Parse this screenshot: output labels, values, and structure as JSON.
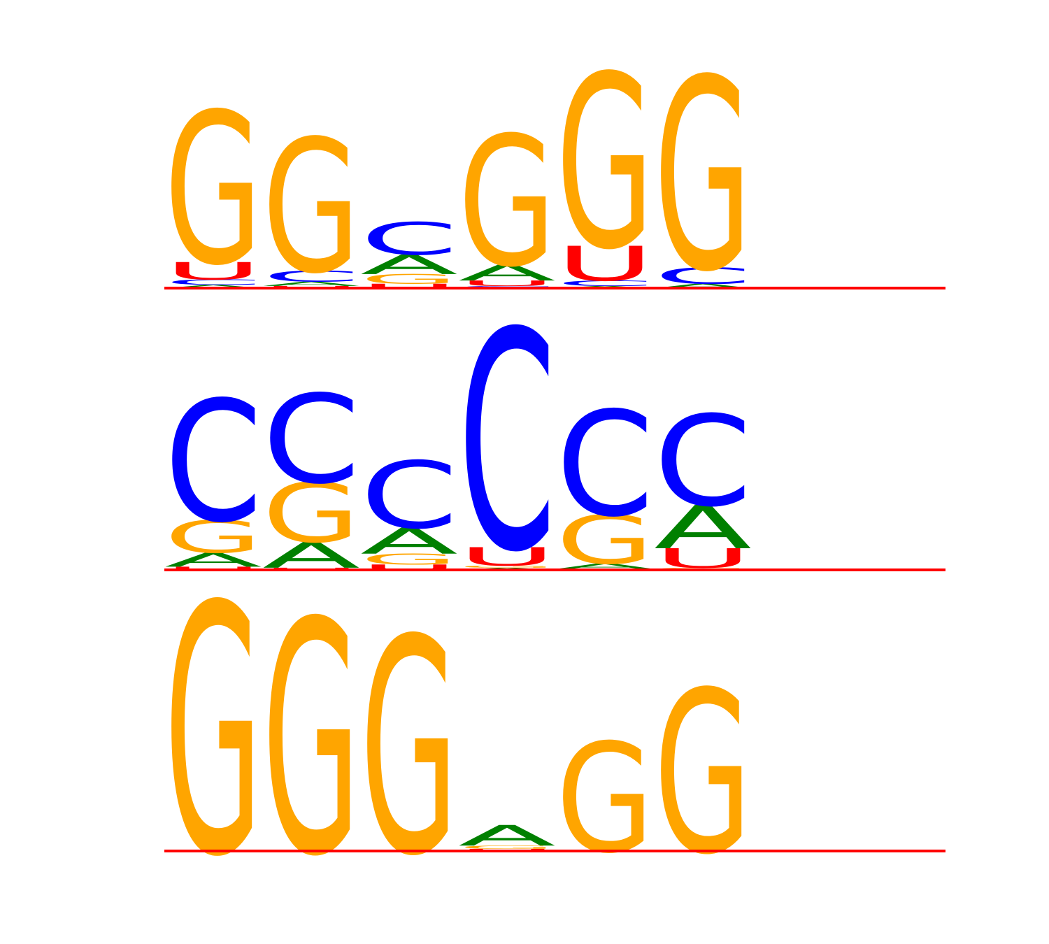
{
  "chart_data": [
    {
      "type": "sequence-logo",
      "alphabet": [
        "A",
        "C",
        "G",
        "U"
      ],
      "colors": {
        "A": "#008000",
        "C": "#0000ff",
        "G": "#ffa500",
        "U": "#ff0000"
      },
      "baseline_color": "#ff0000",
      "ylim": [
        0,
        2
      ],
      "positions": [
        {
          "A": 0.03,
          "C": 0.05,
          "G": 1.4,
          "U": 0.16
        },
        {
          "A": 0.04,
          "C": 0.1,
          "G": 1.23,
          "U": 0.02
        },
        {
          "A": 0.18,
          "C": 0.3,
          "G": 0.09,
          "U": 0.04
        },
        {
          "A": 0.15,
          "C": 0.02,
          "G": 1.2,
          "U": 0.05
        },
        {
          "A": 0.02,
          "C": 0.05,
          "G": 1.6,
          "U": 0.32
        },
        {
          "A": 0.04,
          "C": 0.15,
          "G": 1.77,
          "U": 0.0
        }
      ]
    },
    {
      "type": "sequence-logo",
      "alphabet": [
        "A",
        "C",
        "G",
        "U"
      ],
      "colors": {
        "A": "#008000",
        "C": "#0000ff",
        "G": "#ffa500",
        "U": "#ff0000"
      },
      "baseline_color": "#ff0000",
      "ylim": [
        0,
        2
      ],
      "positions": [
        {
          "A": 0.13,
          "C": 1.12,
          "G": 0.3,
          "U": 0.03
        },
        {
          "A": 0.24,
          "C": 0.82,
          "G": 0.55,
          "U": 0.02
        },
        {
          "A": 0.24,
          "C": 0.62,
          "G": 0.1,
          "U": 0.05
        },
        {
          "A": 0.02,
          "C": 2.02,
          "G": 0.02,
          "U": 0.17
        },
        {
          "A": 0.05,
          "C": 0.97,
          "G": 0.45,
          "U": 0.01
        },
        {
          "A": 0.4,
          "C": 0.84,
          "G": 0.02,
          "U": 0.18
        }
      ]
    },
    {
      "type": "sequence-logo",
      "alphabet": [
        "A",
        "C",
        "G",
        "U"
      ],
      "colors": {
        "A": "#008000",
        "C": "#0000ff",
        "G": "#ffa500",
        "U": "#ff0000"
      },
      "baseline_color": "#ff0000",
      "ylim": [
        0,
        2
      ],
      "positions": [
        {
          "A": 0.0,
          "C": 0.0,
          "G": 2.3,
          "U": 0.0
        },
        {
          "A": 0.0,
          "C": 0.0,
          "G": 2.15,
          "U": 0.0
        },
        {
          "A": 0.0,
          "C": 0.0,
          "G": 1.99,
          "U": 0.0
        },
        {
          "A": 0.19,
          "C": 0.0,
          "G": 0.03,
          "U": 0.02
        },
        {
          "A": 0.0,
          "C": 0.0,
          "G": 1.01,
          "U": 0.0
        },
        {
          "A": 0.0,
          "C": 0.0,
          "G": 1.5,
          "U": 0.0
        }
      ]
    }
  ]
}
